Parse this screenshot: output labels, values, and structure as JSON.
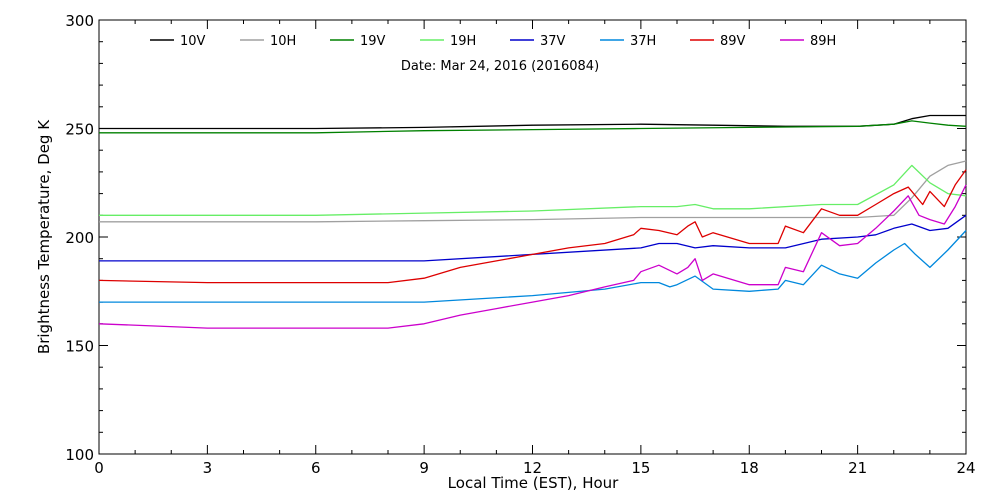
{
  "chart_data": {
    "type": "line",
    "title": "",
    "subtitle": "Date: Mar 24, 2016 (2016084)",
    "xlabel": "Local Time (EST), Hour",
    "ylabel": "Brightness Temperature, Deg K",
    "xlim": [
      0,
      24
    ],
    "ylim": [
      100,
      300
    ],
    "xticks": [
      0,
      3,
      6,
      9,
      12,
      15,
      18,
      21,
      24
    ],
    "yticks": [
      100,
      150,
      200,
      250,
      300
    ],
    "grid": false,
    "legend_position": "top",
    "series": [
      {
        "name": "10V",
        "color": "#000000",
        "points": [
          [
            0,
            250
          ],
          [
            3,
            250
          ],
          [
            6,
            250
          ],
          [
            9,
            250.5
          ],
          [
            12,
            251.5
          ],
          [
            15,
            252
          ],
          [
            17,
            251.5
          ],
          [
            19,
            251
          ],
          [
            21,
            251
          ],
          [
            22,
            252
          ],
          [
            22.5,
            254.5
          ],
          [
            23,
            256
          ],
          [
            24,
            256
          ]
        ]
      },
      {
        "name": "10H",
        "color": "#a0a0a0",
        "points": [
          [
            0,
            207
          ],
          [
            3,
            207
          ],
          [
            6,
            207
          ],
          [
            9,
            207.5
          ],
          [
            12,
            208
          ],
          [
            15,
            209
          ],
          [
            18,
            209
          ],
          [
            21,
            209
          ],
          [
            22,
            210
          ],
          [
            22.5,
            218
          ],
          [
            23,
            228
          ],
          [
            23.5,
            233
          ],
          [
            24,
            235
          ]
        ]
      },
      {
        "name": "19V",
        "color": "#008000",
        "points": [
          [
            0,
            248
          ],
          [
            3,
            248
          ],
          [
            6,
            248
          ],
          [
            9,
            249
          ],
          [
            12,
            249.5
          ],
          [
            15,
            250
          ],
          [
            18,
            250.5
          ],
          [
            21,
            251
          ],
          [
            22,
            252
          ],
          [
            22.5,
            253.5
          ],
          [
            23,
            252.5
          ],
          [
            23.5,
            251.5
          ],
          [
            24,
            251
          ]
        ]
      },
      {
        "name": "19H",
        "color": "#66ee66",
        "points": [
          [
            0,
            210
          ],
          [
            3,
            210
          ],
          [
            6,
            210
          ],
          [
            9,
            211
          ],
          [
            12,
            212
          ],
          [
            15,
            214
          ],
          [
            16,
            214
          ],
          [
            16.5,
            215
          ],
          [
            17,
            213
          ],
          [
            18,
            213
          ],
          [
            20,
            215
          ],
          [
            21,
            215
          ],
          [
            22,
            224
          ],
          [
            22.5,
            233
          ],
          [
            23,
            225
          ],
          [
            23.5,
            220
          ],
          [
            24,
            219
          ]
        ]
      },
      {
        "name": "37V",
        "color": "#0000cc",
        "points": [
          [
            0,
            189
          ],
          [
            3,
            189
          ],
          [
            6,
            189
          ],
          [
            9,
            189
          ],
          [
            12,
            192
          ],
          [
            15,
            195
          ],
          [
            15.5,
            197
          ],
          [
            16,
            197
          ],
          [
            16.5,
            195
          ],
          [
            17,
            196
          ],
          [
            18,
            195
          ],
          [
            19,
            195
          ],
          [
            20,
            199
          ],
          [
            21,
            200
          ],
          [
            21.5,
            201
          ],
          [
            22,
            204
          ],
          [
            22.5,
            206
          ],
          [
            23,
            203
          ],
          [
            23.5,
            204
          ],
          [
            24,
            210
          ]
        ]
      },
      {
        "name": "37H",
        "color": "#0088dd",
        "points": [
          [
            0,
            170
          ],
          [
            3,
            170
          ],
          [
            6,
            170
          ],
          [
            9,
            170
          ],
          [
            12,
            173
          ],
          [
            14,
            176
          ],
          [
            15,
            179
          ],
          [
            15.5,
            179
          ],
          [
            15.8,
            177
          ],
          [
            16,
            178
          ],
          [
            16.5,
            182
          ],
          [
            17,
            176
          ],
          [
            18,
            175
          ],
          [
            18.8,
            176
          ],
          [
            19,
            180
          ],
          [
            19.5,
            178
          ],
          [
            20,
            187
          ],
          [
            20.5,
            183
          ],
          [
            21,
            181
          ],
          [
            21.5,
            188
          ],
          [
            22,
            194
          ],
          [
            22.3,
            197
          ],
          [
            22.6,
            192
          ],
          [
            23,
            186
          ],
          [
            23.5,
            194
          ],
          [
            24,
            203
          ]
        ]
      },
      {
        "name": "89V",
        "color": "#dd0000",
        "points": [
          [
            0,
            180
          ],
          [
            3,
            179
          ],
          [
            6,
            179
          ],
          [
            8,
            179
          ],
          [
            9,
            181
          ],
          [
            10,
            186
          ],
          [
            11,
            189
          ],
          [
            12,
            192
          ],
          [
            13,
            195
          ],
          [
            14,
            197
          ],
          [
            14.8,
            201
          ],
          [
            15,
            204
          ],
          [
            15.5,
            203
          ],
          [
            16,
            201
          ],
          [
            16.3,
            205
          ],
          [
            16.5,
            207
          ],
          [
            16.7,
            200
          ],
          [
            17,
            202
          ],
          [
            18,
            197
          ],
          [
            18.8,
            197
          ],
          [
            19,
            205
          ],
          [
            19.5,
            202
          ],
          [
            20,
            213
          ],
          [
            20.5,
            210
          ],
          [
            21,
            210
          ],
          [
            21.5,
            215
          ],
          [
            22,
            220
          ],
          [
            22.4,
            223
          ],
          [
            22.8,
            215
          ],
          [
            23,
            221
          ],
          [
            23.4,
            214
          ],
          [
            23.7,
            224
          ],
          [
            24,
            231
          ]
        ]
      },
      {
        "name": "89H",
        "color": "#cc00cc",
        "points": [
          [
            0,
            160
          ],
          [
            3,
            158
          ],
          [
            6,
            158
          ],
          [
            8,
            158
          ],
          [
            9,
            160
          ],
          [
            10,
            164
          ],
          [
            11,
            167
          ],
          [
            12,
            170
          ],
          [
            13,
            173
          ],
          [
            14,
            177
          ],
          [
            14.8,
            180
          ],
          [
            15,
            184
          ],
          [
            15.5,
            187
          ],
          [
            16,
            183
          ],
          [
            16.3,
            186
          ],
          [
            16.5,
            190
          ],
          [
            16.7,
            180
          ],
          [
            17,
            183
          ],
          [
            18,
            178
          ],
          [
            18.8,
            178
          ],
          [
            19,
            186
          ],
          [
            19.5,
            184
          ],
          [
            20,
            202
          ],
          [
            20.5,
            196
          ],
          [
            21,
            197
          ],
          [
            21.5,
            204
          ],
          [
            22,
            212
          ],
          [
            22.4,
            219
          ],
          [
            22.7,
            210
          ],
          [
            23,
            208
          ],
          [
            23.4,
            206
          ],
          [
            23.7,
            214
          ],
          [
            24,
            224
          ]
        ]
      }
    ]
  }
}
